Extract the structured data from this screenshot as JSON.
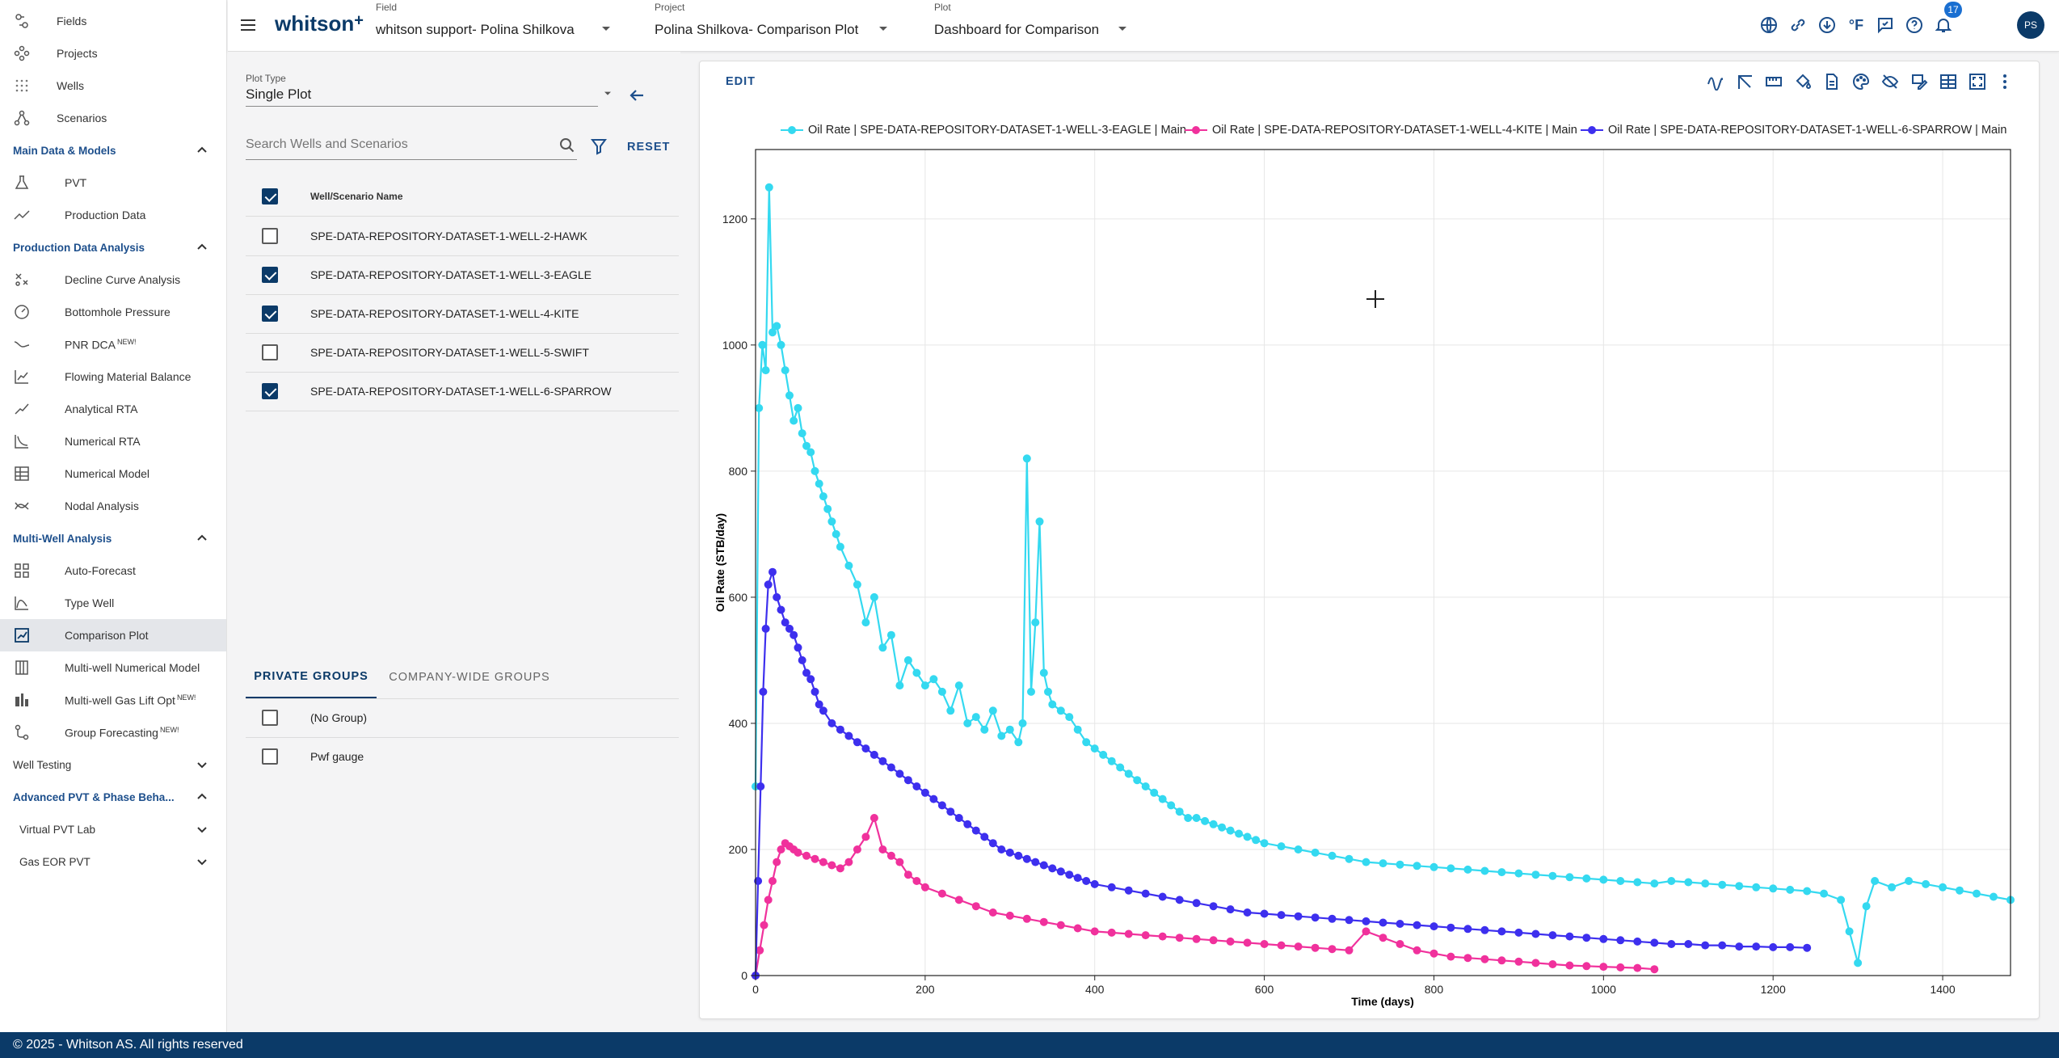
{
  "colors": {
    "brand": "#0b3a68",
    "section": "#1d4f8c",
    "eagle": "#34d9f0",
    "kite": "#f0319c",
    "sparrow": "#3d2fee"
  },
  "sidebar": {
    "top_items": [
      {
        "label": "Fields",
        "icon": "fields-icon"
      },
      {
        "label": "Projects",
        "icon": "projects-icon"
      },
      {
        "label": "Wells",
        "icon": "wells-icon"
      },
      {
        "label": "Scenarios",
        "icon": "scenarios-icon"
      }
    ],
    "sections": {
      "main_data": {
        "label": "Main Data & Models",
        "items": [
          {
            "label": "PVT",
            "icon": "flask-icon"
          },
          {
            "label": "Production Data",
            "icon": "trend-icon"
          }
        ]
      },
      "pda": {
        "label": "Production Data Analysis",
        "items": [
          {
            "label": "Decline Curve Analysis",
            "icon": "decline-curve-icon"
          },
          {
            "label": "Bottomhole Pressure",
            "icon": "gauge-icon"
          },
          {
            "label": "PNR DCA",
            "badge": "NEW!",
            "icon": "pnr-dca-icon"
          },
          {
            "label": "Flowing Material Balance",
            "icon": "material-balance-icon"
          },
          {
            "label": "Analytical RTA",
            "icon": "analytical-rta-icon"
          },
          {
            "label": "Numerical RTA",
            "icon": "numerical-rta-icon"
          },
          {
            "label": "Numerical Model",
            "icon": "numerical-model-icon"
          },
          {
            "label": "Nodal Analysis",
            "icon": "nodal-analysis-icon"
          }
        ]
      },
      "mwa": {
        "label": "Multi-Well Analysis",
        "items": [
          {
            "label": "Auto-Forecast",
            "icon": "auto-forecast-icon"
          },
          {
            "label": "Type Well",
            "icon": "type-well-icon"
          },
          {
            "label": "Comparison Plot",
            "icon": "comparison-plot-icon"
          },
          {
            "label": "Multi-well Numerical Model",
            "icon": "multi-well-model-icon"
          },
          {
            "label": "Multi-well Gas Lift Opt",
            "badge": "NEW!",
            "icon": "gas-lift-icon"
          },
          {
            "label": "Group Forecasting",
            "badge": "NEW!",
            "icon": "group-forecasting-icon"
          }
        ]
      },
      "well_testing": {
        "label": "Well Testing"
      },
      "advanced_pvt": {
        "label": "Advanced PVT & Phase Beha...",
        "items": [
          {
            "label": "Virtual PVT Lab"
          },
          {
            "label": "Gas EOR PVT"
          }
        ]
      }
    }
  },
  "topbar": {
    "logo": "whitson",
    "logo_plus": "+",
    "field": {
      "caption": "Field",
      "value": "whitson support- Polina Shilkova"
    },
    "project": {
      "caption": "Project",
      "value": "Polina Shilkova- Comparison Plot"
    },
    "plot": {
      "caption": "Plot",
      "value": "Dashboard for Comparison"
    },
    "units_label": "°F",
    "notification_count": "17",
    "avatar": "PS"
  },
  "left_panel": {
    "plot_type": {
      "caption": "Plot Type",
      "value": "Single Plot"
    },
    "search_placeholder": "Search Wells and Scenarios",
    "reset_label": "RESET",
    "column_header": "Well/Scenario Name",
    "wells": [
      {
        "name": "SPE-DATA-REPOSITORY-DATASET-1-WELL-2-HAWK",
        "checked": false
      },
      {
        "name": "SPE-DATA-REPOSITORY-DATASET-1-WELL-3-EAGLE",
        "checked": true
      },
      {
        "name": "SPE-DATA-REPOSITORY-DATASET-1-WELL-4-KITE",
        "checked": true
      },
      {
        "name": "SPE-DATA-REPOSITORY-DATASET-1-WELL-5-SWIFT",
        "checked": false
      },
      {
        "name": "SPE-DATA-REPOSITORY-DATASET-1-WELL-6-SPARROW",
        "checked": true
      }
    ],
    "group_tabs": {
      "private": "PRIVATE GROUPS",
      "company": "COMPANY-WIDE GROUPS"
    },
    "groups": [
      {
        "name": "(No Group)",
        "checked": false
      },
      {
        "name": "Pwf gauge",
        "checked": false
      }
    ]
  },
  "chart": {
    "edit_label": "EDIT"
  },
  "footer": "© 2025 - Whitson AS. All rights reserved",
  "chart_data": {
    "type": "scatter",
    "mode": "lines+markers",
    "xlabel": "Time (days)",
    "ylabel": "Oil Rate (STB/day)",
    "xlim": [
      0,
      1480
    ],
    "ylim": [
      0,
      1310
    ],
    "xticks": [
      0,
      200,
      400,
      600,
      800,
      1000,
      1200,
      1400
    ],
    "yticks": [
      0,
      200,
      400,
      600,
      800,
      1000,
      1200
    ],
    "grid": true,
    "legend_position": "top",
    "series": [
      {
        "name": "Oil Rate | SPE-DATA-REPOSITORY-DATASET-1-WELL-3-EAGLE | Main",
        "color": "#34d9f0",
        "x": [
          0,
          4,
          8,
          12,
          16,
          20,
          25,
          30,
          35,
          40,
          45,
          50,
          55,
          60,
          65,
          70,
          75,
          80,
          85,
          90,
          95,
          100,
          110,
          120,
          130,
          140,
          150,
          160,
          170,
          180,
          190,
          200,
          210,
          220,
          230,
          240,
          250,
          260,
          270,
          280,
          290,
          300,
          310,
          315,
          320,
          325,
          330,
          335,
          340,
          345,
          350,
          360,
          370,
          380,
          390,
          400,
          410,
          420,
          430,
          440,
          450,
          460,
          470,
          480,
          490,
          500,
          510,
          520,
          530,
          540,
          550,
          560,
          570,
          580,
          590,
          600,
          620,
          640,
          660,
          680,
          700,
          720,
          740,
          760,
          780,
          800,
          820,
          840,
          860,
          880,
          900,
          920,
          940,
          960,
          980,
          1000,
          1020,
          1040,
          1060,
          1080,
          1100,
          1120,
          1140,
          1160,
          1180,
          1200,
          1220,
          1240,
          1260,
          1280,
          1290,
          1300,
          1310,
          1320,
          1340,
          1360,
          1380,
          1400,
          1420,
          1440,
          1460,
          1480
        ],
        "y": [
          300,
          900,
          1000,
          960,
          1250,
          1020,
          1030,
          1000,
          960,
          920,
          880,
          900,
          860,
          840,
          830,
          800,
          780,
          760,
          740,
          720,
          700,
          680,
          650,
          620,
          560,
          600,
          520,
          540,
          460,
          500,
          480,
          460,
          470,
          450,
          420,
          460,
          400,
          410,
          390,
          420,
          380,
          390,
          370,
          400,
          820,
          450,
          560,
          720,
          480,
          450,
          430,
          420,
          410,
          390,
          370,
          360,
          350,
          340,
          330,
          320,
          310,
          300,
          290,
          280,
          270,
          260,
          250,
          250,
          245,
          240,
          235,
          230,
          225,
          220,
          215,
          210,
          205,
          200,
          195,
          190,
          185,
          180,
          178,
          176,
          174,
          172,
          170,
          168,
          166,
          164,
          162,
          160,
          158,
          156,
          154,
          152,
          150,
          148,
          146,
          150,
          148,
          146,
          144,
          142,
          140,
          138,
          136,
          134,
          130,
          120,
          70,
          20,
          110,
          150,
          140,
          150,
          145,
          140,
          135,
          130,
          125,
          120
        ]
      },
      {
        "name": "Oil Rate | SPE-DATA-REPOSITORY-DATASET-1-WELL-4-KITE | Main",
        "color": "#f0319c",
        "x": [
          0,
          5,
          10,
          15,
          20,
          25,
          30,
          35,
          40,
          45,
          50,
          60,
          70,
          80,
          90,
          100,
          110,
          120,
          130,
          140,
          150,
          160,
          170,
          180,
          190,
          200,
          220,
          240,
          260,
          280,
          300,
          320,
          340,
          360,
          380,
          400,
          420,
          440,
          460,
          480,
          500,
          520,
          540,
          560,
          580,
          600,
          620,
          640,
          660,
          680,
          700,
          720,
          740,
          760,
          780,
          800,
          820,
          840,
          860,
          880,
          900,
          920,
          940,
          960,
          980,
          1000,
          1020,
          1040,
          1060
        ],
        "y": [
          0,
          40,
          80,
          120,
          150,
          180,
          200,
          210,
          205,
          200,
          195,
          190,
          185,
          180,
          175,
          170,
          180,
          200,
          220,
          250,
          200,
          190,
          180,
          160,
          150,
          140,
          130,
          120,
          110,
          100,
          95,
          90,
          85,
          80,
          75,
          70,
          68,
          66,
          64,
          62,
          60,
          58,
          56,
          54,
          52,
          50,
          48,
          46,
          44,
          42,
          40,
          70,
          60,
          50,
          40,
          35,
          30,
          28,
          26,
          24,
          22,
          20,
          18,
          16,
          15,
          14,
          13,
          12,
          10
        ]
      },
      {
        "name": "Oil Rate | SPE-DATA-REPOSITORY-DATASET-1-WELL-6-SPARROW | Main",
        "color": "#3d2fee",
        "x": [
          0,
          3,
          6,
          9,
          12,
          15,
          20,
          25,
          30,
          35,
          40,
          45,
          50,
          55,
          60,
          65,
          70,
          75,
          80,
          90,
          100,
          110,
          120,
          130,
          140,
          150,
          160,
          170,
          180,
          190,
          200,
          210,
          220,
          230,
          240,
          250,
          260,
          270,
          280,
          290,
          300,
          310,
          320,
          330,
          340,
          350,
          360,
          370,
          380,
          390,
          400,
          420,
          440,
          460,
          480,
          500,
          520,
          540,
          560,
          580,
          600,
          620,
          640,
          660,
          680,
          700,
          720,
          740,
          760,
          780,
          800,
          820,
          840,
          860,
          880,
          900,
          920,
          940,
          960,
          980,
          1000,
          1020,
          1040,
          1060,
          1080,
          1100,
          1120,
          1140,
          1160,
          1180,
          1200,
          1220,
          1240
        ],
        "y": [
          0,
          150,
          300,
          450,
          550,
          620,
          640,
          600,
          580,
          560,
          550,
          540,
          520,
          500,
          480,
          470,
          450,
          430,
          420,
          400,
          390,
          380,
          370,
          360,
          350,
          340,
          330,
          320,
          310,
          300,
          290,
          280,
          270,
          260,
          250,
          240,
          230,
          220,
          210,
          200,
          195,
          190,
          185,
          180,
          175,
          170,
          165,
          160,
          155,
          150,
          145,
          140,
          135,
          130,
          125,
          120,
          115,
          110,
          105,
          100,
          98,
          96,
          94,
          92,
          90,
          88,
          86,
          84,
          82,
          80,
          78,
          76,
          74,
          72,
          70,
          68,
          66,
          64,
          62,
          60,
          58,
          56,
          54,
          52,
          50,
          50,
          48,
          48,
          46,
          46,
          45,
          45,
          44
        ]
      }
    ]
  }
}
